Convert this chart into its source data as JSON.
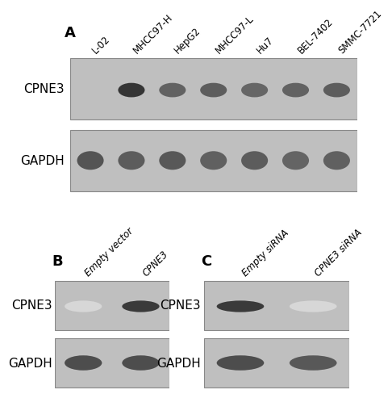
{
  "bg_blot": "#bebebe",
  "panel_A": {
    "label": "A",
    "lanes": [
      "L-02",
      "MHCC97-H",
      "HepG2",
      "MHCC97-L",
      "Hu7",
      "BEL-7402",
      "SMMC-7721"
    ],
    "cpne3_intensities": [
      0.0,
      0.9,
      0.7,
      0.72,
      0.68,
      0.7,
      0.72
    ],
    "gapdh_intensities": [
      0.82,
      0.78,
      0.8,
      0.76,
      0.78,
      0.74,
      0.76
    ],
    "row_labels": [
      "CPNE3",
      "GAPDH"
    ]
  },
  "panel_B": {
    "label": "B",
    "lanes": [
      "Empty vector",
      "CPNE3"
    ],
    "cpne3_intensities": [
      0.18,
      0.88
    ],
    "gapdh_intensities": [
      0.85,
      0.85
    ],
    "row_labels": [
      "CPNE3",
      "GAPDH"
    ],
    "italic_labels": true
  },
  "panel_C": {
    "label": "C",
    "lanes": [
      "Empty siRNA",
      "CPNE3 siRNA"
    ],
    "cpne3_intensities": [
      0.88,
      0.18
    ],
    "gapdh_intensities": [
      0.85,
      0.8
    ],
    "row_labels": [
      "CPNE3",
      "GAPDH"
    ],
    "italic_labels": true
  },
  "font_size_lane": 8.5,
  "font_size_label": 11,
  "font_size_panel": 13
}
